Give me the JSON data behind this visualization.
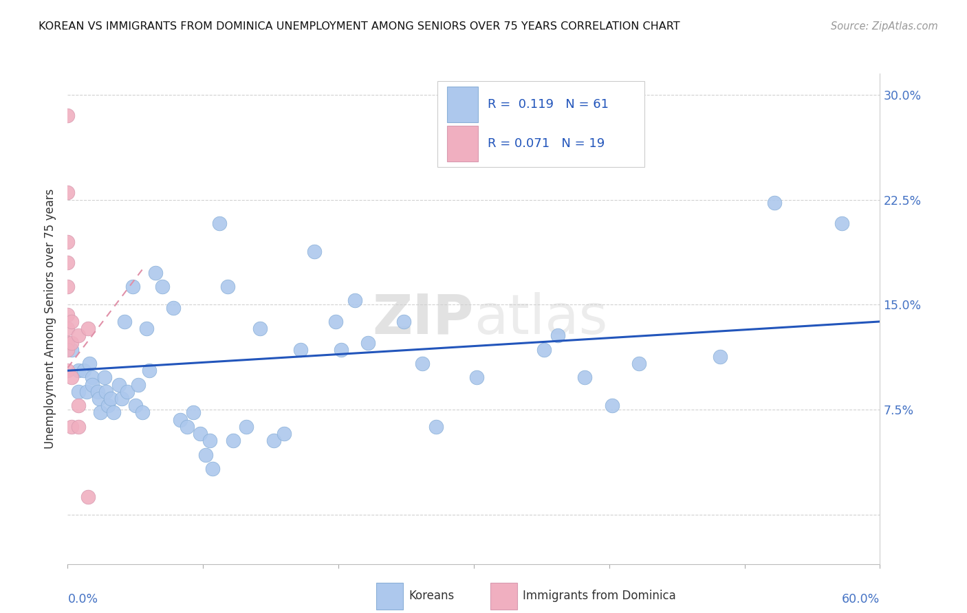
{
  "title": "KOREAN VS IMMIGRANTS FROM DOMINICA UNEMPLOYMENT AMONG SENIORS OVER 75 YEARS CORRELATION CHART",
  "source": "Source: ZipAtlas.com",
  "ylabel": "Unemployment Among Seniors over 75 years",
  "yticks": [
    0.0,
    0.075,
    0.15,
    0.225,
    0.3
  ],
  "ytick_labels": [
    "",
    "7.5%",
    "15.0%",
    "22.5%",
    "30.0%"
  ],
  "xlim": [
    0.0,
    0.6
  ],
  "ylim": [
    -0.035,
    0.315
  ],
  "legend_r1_val": "0.119",
  "legend_n1_val": "61",
  "legend_r2_val": "0.071",
  "legend_n2_val": "19",
  "korean_color": "#adc8ed",
  "dominica_color": "#f0afc0",
  "korean_line_color": "#2255bb",
  "dominica_line_color": "#e090a8",
  "watermark_zip": "ZIP",
  "watermark_atlas": "atlas",
  "korean_x": [
    0.003,
    0.008,
    0.008,
    0.012,
    0.014,
    0.016,
    0.018,
    0.018,
    0.022,
    0.023,
    0.024,
    0.027,
    0.028,
    0.03,
    0.032,
    0.034,
    0.038,
    0.04,
    0.042,
    0.044,
    0.048,
    0.05,
    0.052,
    0.055,
    0.058,
    0.06,
    0.065,
    0.07,
    0.078,
    0.083,
    0.088,
    0.093,
    0.098,
    0.102,
    0.105,
    0.107,
    0.112,
    0.118,
    0.122,
    0.132,
    0.142,
    0.152,
    0.16,
    0.172,
    0.182,
    0.198,
    0.202,
    0.212,
    0.222,
    0.248,
    0.262,
    0.272,
    0.302,
    0.352,
    0.362,
    0.382,
    0.402,
    0.422,
    0.482,
    0.522,
    0.572
  ],
  "korean_y": [
    0.118,
    0.103,
    0.088,
    0.103,
    0.088,
    0.108,
    0.098,
    0.093,
    0.088,
    0.083,
    0.073,
    0.098,
    0.088,
    0.078,
    0.083,
    0.073,
    0.093,
    0.083,
    0.138,
    0.088,
    0.163,
    0.078,
    0.093,
    0.073,
    0.133,
    0.103,
    0.173,
    0.163,
    0.148,
    0.068,
    0.063,
    0.073,
    0.058,
    0.043,
    0.053,
    0.033,
    0.208,
    0.163,
    0.053,
    0.063,
    0.133,
    0.053,
    0.058,
    0.118,
    0.188,
    0.138,
    0.118,
    0.153,
    0.123,
    0.138,
    0.108,
    0.063,
    0.098,
    0.118,
    0.128,
    0.098,
    0.078,
    0.108,
    0.113,
    0.223,
    0.208
  ],
  "dominica_x": [
    0.0,
    0.0,
    0.0,
    0.0,
    0.0,
    0.0,
    0.0,
    0.0,
    0.0,
    0.0,
    0.003,
    0.003,
    0.003,
    0.003,
    0.008,
    0.008,
    0.008,
    0.015,
    0.015
  ],
  "dominica_y": [
    0.285,
    0.23,
    0.195,
    0.18,
    0.163,
    0.143,
    0.133,
    0.123,
    0.118,
    0.103,
    0.138,
    0.123,
    0.098,
    0.063,
    0.128,
    0.078,
    0.063,
    0.133,
    0.013
  ],
  "korean_trendline_x": [
    0.0,
    0.6
  ],
  "korean_trendline_y": [
    0.103,
    0.138
  ],
  "dominica_trendline_x": [
    0.0,
    0.055
  ],
  "dominica_trendline_y": [
    0.105,
    0.175
  ],
  "xtick_positions": [
    0.0,
    0.1,
    0.2,
    0.3,
    0.4,
    0.5,
    0.6
  ]
}
